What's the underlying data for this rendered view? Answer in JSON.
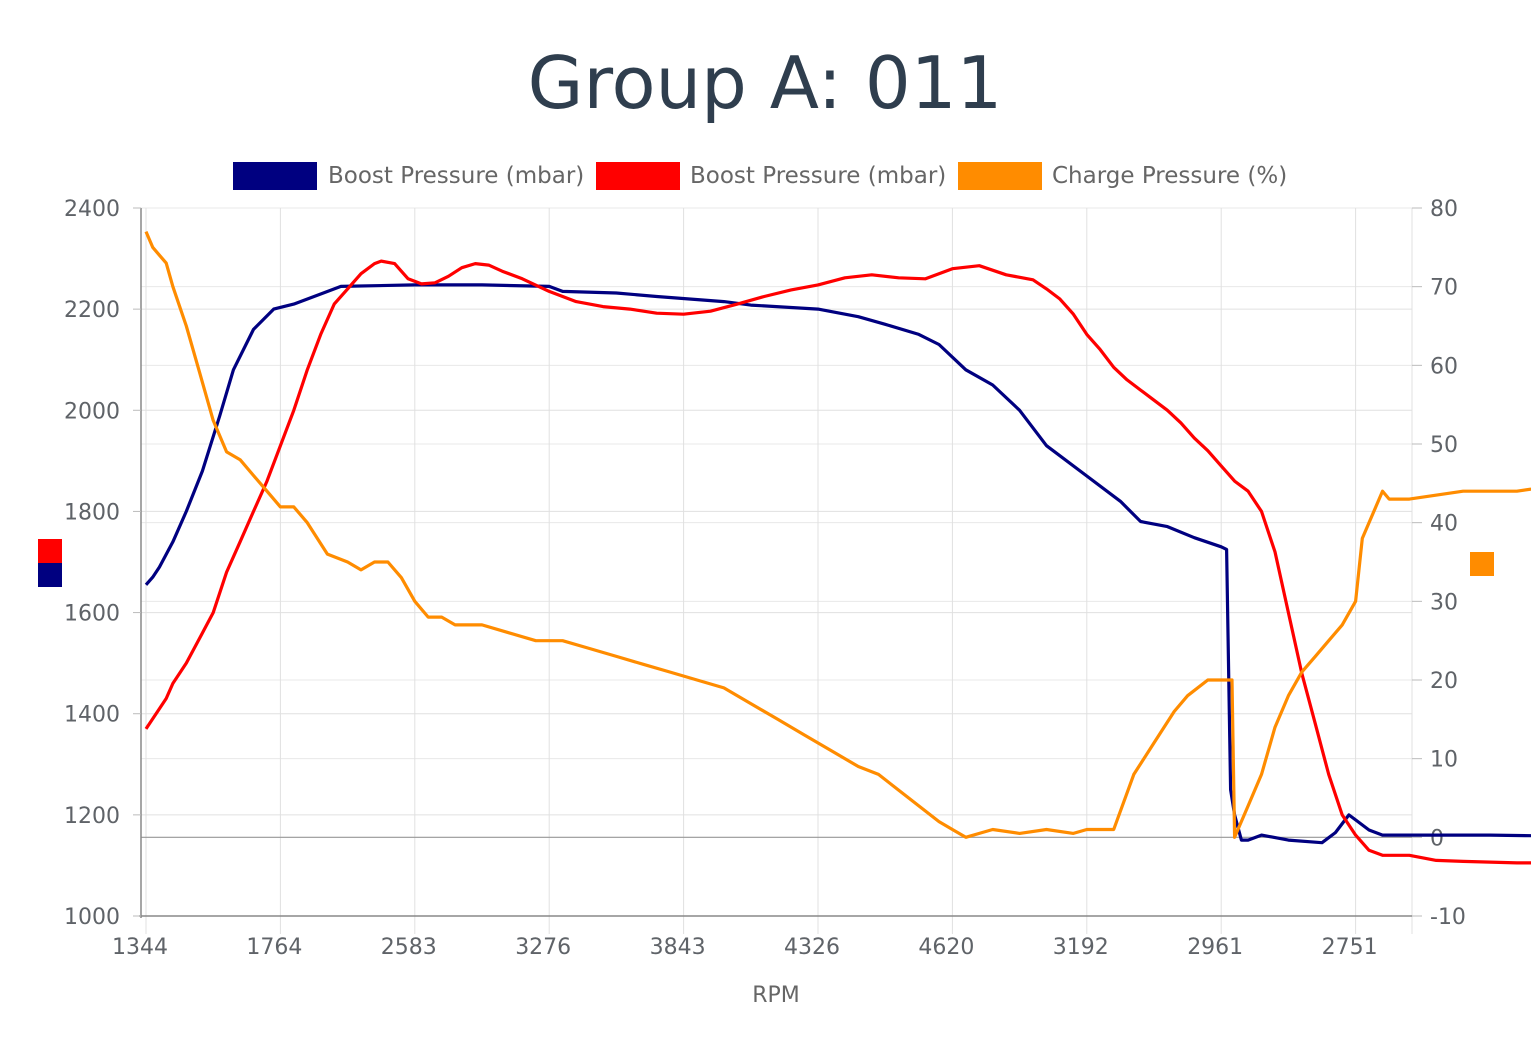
{
  "chart_data": {
    "type": "line",
    "title": "Group A: 011",
    "xlabel": "RPM",
    "ylabel": "",
    "ylabel_right": "",
    "x_tick_labels": [
      "1344",
      "1764",
      "2583",
      "3276",
      "3843",
      "4326",
      "4620",
      "3192",
      "2961",
      "2751"
    ],
    "ylim": [
      1000,
      2400
    ],
    "y_ticks": [
      1000,
      1200,
      1400,
      1600,
      1800,
      2000,
      2200,
      2400
    ],
    "ylim_right": [
      -10,
      80
    ],
    "y_ticks_right": [
      -10,
      0,
      10,
      20,
      30,
      40,
      50,
      60,
      70,
      80
    ],
    "grid": true,
    "legend_position": "top",
    "series": [
      {
        "name": "Boost Pressure (mbar)",
        "color": "#000080",
        "axis": "left",
        "points": [
          [
            0,
            1655
          ],
          [
            0.05,
            1670
          ],
          [
            0.1,
            1690
          ],
          [
            0.2,
            1740
          ],
          [
            0.3,
            1800
          ],
          [
            0.42,
            1880
          ],
          [
            0.55,
            1990
          ],
          [
            0.65,
            2080
          ],
          [
            0.8,
            2160
          ],
          [
            0.95,
            2200
          ],
          [
            1.1,
            2210
          ],
          [
            1.3,
            2230
          ],
          [
            1.45,
            2245
          ],
          [
            2.0,
            2248
          ],
          [
            2.5,
            2248
          ],
          [
            3.0,
            2245
          ],
          [
            3.1,
            2235
          ],
          [
            3.5,
            2232
          ],
          [
            3.8,
            2225
          ],
          [
            4.3,
            2215
          ],
          [
            4.5,
            2208
          ],
          [
            5.0,
            2200
          ],
          [
            5.3,
            2185
          ],
          [
            5.5,
            2170
          ],
          [
            5.75,
            2150
          ],
          [
            5.9,
            2130
          ],
          [
            6.1,
            2080
          ],
          [
            6.3,
            2050
          ],
          [
            6.5,
            2000
          ],
          [
            6.7,
            1930
          ],
          [
            7.0,
            1870
          ],
          [
            7.25,
            1820
          ],
          [
            7.4,
            1780
          ],
          [
            7.6,
            1770
          ],
          [
            7.8,
            1748
          ],
          [
            8.0,
            1730
          ],
          [
            8.04,
            1725
          ],
          [
            8.07,
            1250
          ],
          [
            8.1,
            1200
          ],
          [
            8.15,
            1150
          ],
          [
            8.2,
            1150
          ],
          [
            8.3,
            1160
          ],
          [
            8.5,
            1150
          ],
          [
            8.75,
            1145
          ],
          [
            8.85,
            1165
          ],
          [
            8.95,
            1200
          ],
          [
            9.0,
            1190
          ],
          [
            9.1,
            1170
          ],
          [
            9.2,
            1160
          ],
          [
            9.5,
            1160
          ],
          [
            10.0,
            1160
          ],
          [
            10.5,
            1158
          ],
          [
            11.0,
            1155
          ],
          [
            12.0,
            1155
          ],
          [
            12.9,
            1155
          ],
          [
            13.0,
            1145
          ]
        ]
      },
      {
        "name": "Boost Pressure (mbar)",
        "color": "#ff0000",
        "axis": "left",
        "points": [
          [
            0,
            1370
          ],
          [
            0.1,
            1410
          ],
          [
            0.15,
            1430
          ],
          [
            0.2,
            1460
          ],
          [
            0.3,
            1500
          ],
          [
            0.4,
            1550
          ],
          [
            0.5,
            1600
          ],
          [
            0.6,
            1680
          ],
          [
            0.7,
            1740
          ],
          [
            0.8,
            1800
          ],
          [
            0.9,
            1860
          ],
          [
            1.0,
            1930
          ],
          [
            1.1,
            2000
          ],
          [
            1.2,
            2080
          ],
          [
            1.3,
            2150
          ],
          [
            1.4,
            2210
          ],
          [
            1.5,
            2240
          ],
          [
            1.6,
            2270
          ],
          [
            1.7,
            2290
          ],
          [
            1.75,
            2295
          ],
          [
            1.85,
            2290
          ],
          [
            1.95,
            2260
          ],
          [
            2.05,
            2250
          ],
          [
            2.15,
            2252
          ],
          [
            2.25,
            2265
          ],
          [
            2.35,
            2282
          ],
          [
            2.45,
            2290
          ],
          [
            2.55,
            2287
          ],
          [
            2.65,
            2275
          ],
          [
            2.8,
            2260
          ],
          [
            3.0,
            2235
          ],
          [
            3.2,
            2215
          ],
          [
            3.4,
            2205
          ],
          [
            3.6,
            2200
          ],
          [
            3.8,
            2192
          ],
          [
            4.0,
            2190
          ],
          [
            4.2,
            2196
          ],
          [
            4.4,
            2210
          ],
          [
            4.6,
            2225
          ],
          [
            4.8,
            2238
          ],
          [
            5.0,
            2248
          ],
          [
            5.2,
            2262
          ],
          [
            5.4,
            2268
          ],
          [
            5.6,
            2262
          ],
          [
            5.8,
            2260
          ],
          [
            6.0,
            2280
          ],
          [
            6.2,
            2286
          ],
          [
            6.4,
            2268
          ],
          [
            6.6,
            2258
          ],
          [
            6.7,
            2240
          ],
          [
            6.8,
            2220
          ],
          [
            6.9,
            2190
          ],
          [
            7.0,
            2150
          ],
          [
            7.1,
            2120
          ],
          [
            7.2,
            2085
          ],
          [
            7.3,
            2060
          ],
          [
            7.4,
            2040
          ],
          [
            7.5,
            2020
          ],
          [
            7.6,
            2000
          ],
          [
            7.7,
            1975
          ],
          [
            7.8,
            1945
          ],
          [
            7.9,
            1920
          ],
          [
            8.0,
            1890
          ],
          [
            8.1,
            1860
          ],
          [
            8.2,
            1840
          ],
          [
            8.3,
            1800
          ],
          [
            8.4,
            1720
          ],
          [
            8.5,
            1600
          ],
          [
            8.6,
            1480
          ],
          [
            8.7,
            1380
          ],
          [
            8.8,
            1280
          ],
          [
            8.9,
            1200
          ],
          [
            9.0,
            1160
          ],
          [
            9.1,
            1130
          ],
          [
            9.2,
            1120
          ],
          [
            9.4,
            1120
          ],
          [
            9.6,
            1110
          ],
          [
            9.8,
            1108
          ],
          [
            10.2,
            1105
          ],
          [
            10.6,
            1105
          ],
          [
            11.0,
            1108
          ],
          [
            11.5,
            1110
          ],
          [
            12.0,
            1110
          ],
          [
            12.4,
            1112
          ],
          [
            12.6,
            1122
          ],
          [
            12.9,
            1122
          ]
        ]
      },
      {
        "name": "Charge Pressure (%)",
        "color": "#ff8c00",
        "axis": "right",
        "points": [
          [
            0,
            77
          ],
          [
            0.05,
            75
          ],
          [
            0.1,
            74
          ],
          [
            0.15,
            73
          ],
          [
            0.2,
            70
          ],
          [
            0.3,
            65
          ],
          [
            0.4,
            59
          ],
          [
            0.5,
            53
          ],
          [
            0.6,
            49
          ],
          [
            0.7,
            48
          ],
          [
            0.8,
            46
          ],
          [
            0.9,
            44
          ],
          [
            1.0,
            42
          ],
          [
            1.1,
            42
          ],
          [
            1.2,
            40
          ],
          [
            1.35,
            36
          ],
          [
            1.5,
            35
          ],
          [
            1.6,
            34
          ],
          [
            1.7,
            35
          ],
          [
            1.8,
            35
          ],
          [
            1.9,
            33
          ],
          [
            2.0,
            30
          ],
          [
            2.1,
            28
          ],
          [
            2.2,
            28
          ],
          [
            2.3,
            27
          ],
          [
            2.5,
            27
          ],
          [
            2.7,
            26
          ],
          [
            2.9,
            25
          ],
          [
            3.1,
            25
          ],
          [
            3.3,
            24
          ],
          [
            3.5,
            23
          ],
          [
            3.7,
            22
          ],
          [
            3.9,
            21
          ],
          [
            4.1,
            20
          ],
          [
            4.3,
            19
          ],
          [
            4.5,
            17
          ],
          [
            4.7,
            15
          ],
          [
            4.9,
            13
          ],
          [
            5.1,
            11
          ],
          [
            5.3,
            9
          ],
          [
            5.45,
            8
          ],
          [
            5.6,
            6
          ],
          [
            5.75,
            4
          ],
          [
            5.9,
            2
          ],
          [
            6.0,
            1
          ],
          [
            6.1,
            0
          ],
          [
            6.2,
            0.5
          ],
          [
            6.3,
            1
          ],
          [
            6.5,
            0.5
          ],
          [
            6.7,
            1
          ],
          [
            6.9,
            0.5
          ],
          [
            7.0,
            1
          ],
          [
            7.2,
            1
          ],
          [
            7.35,
            8
          ],
          [
            7.5,
            12
          ],
          [
            7.65,
            16
          ],
          [
            7.75,
            18
          ],
          [
            7.9,
            20
          ],
          [
            8.0,
            20
          ],
          [
            8.08,
            20
          ],
          [
            8.1,
            0
          ],
          [
            8.2,
            4
          ],
          [
            8.3,
            8
          ],
          [
            8.4,
            14
          ],
          [
            8.5,
            18
          ],
          [
            8.6,
            21
          ],
          [
            8.7,
            23
          ],
          [
            8.8,
            25
          ],
          [
            8.9,
            27
          ],
          [
            9.0,
            30
          ],
          [
            9.05,
            38
          ],
          [
            9.1,
            40
          ],
          [
            9.15,
            42
          ],
          [
            9.2,
            44
          ],
          [
            9.25,
            43
          ],
          [
            9.4,
            43
          ],
          [
            9.8,
            44
          ],
          [
            10.2,
            44
          ],
          [
            10.6,
            45
          ],
          [
            11.0,
            46
          ],
          [
            11.4,
            47
          ],
          [
            11.8,
            48
          ],
          [
            12.2,
            49
          ],
          [
            12.6,
            50
          ],
          [
            12.9,
            50.5
          ],
          [
            13.0,
            50.5
          ]
        ]
      }
    ]
  },
  "legend": {
    "items": [
      {
        "label": "Boost Pressure (mbar)",
        "color": "#000080"
      },
      {
        "label": "Boost Pressure (mbar)",
        "color": "#ff0000"
      },
      {
        "label": "Charge Pressure (%)",
        "color": "#ff8c00"
      }
    ]
  }
}
